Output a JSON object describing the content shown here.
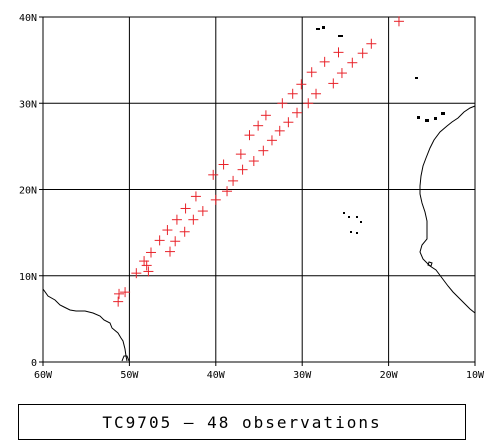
{
  "map": {
    "caption": "TC9705 — 48 observations",
    "lon_range": [
      -60,
      -10
    ],
    "lat_range": [
      0,
      40
    ],
    "lon_ticks": [
      {
        "value": -60,
        "label": "60W"
      },
      {
        "value": -50,
        "label": "50W"
      },
      {
        "value": -40,
        "label": "40W"
      },
      {
        "value": -30,
        "label": "30W"
      },
      {
        "value": -20,
        "label": "20W"
      },
      {
        "value": -10,
        "label": "10W"
      }
    ],
    "lat_ticks": [
      {
        "value": 0,
        "label": "0"
      },
      {
        "value": 10,
        "label": "10N"
      },
      {
        "value": 20,
        "label": "20N"
      },
      {
        "value": 30,
        "label": "30N"
      },
      {
        "value": 40,
        "label": "40N"
      }
    ],
    "grid_lon": [
      -50,
      -40,
      -30,
      -20
    ],
    "grid_lat": [
      10,
      20,
      30
    ],
    "marker_color": "#e8232a",
    "marker_symbol": "plus",
    "observations": [
      [
        -51.2,
        7.9
      ],
      [
        -50.5,
        8.1
      ],
      [
        -51.3,
        7.0
      ],
      [
        -49.2,
        10.3
      ],
      [
        -48.3,
        11.7
      ],
      [
        -48.0,
        11.2
      ],
      [
        -47.8,
        10.5
      ],
      [
        -47.5,
        12.7
      ],
      [
        -46.5,
        14.1
      ],
      [
        -45.3,
        12.8
      ],
      [
        -45.6,
        15.3
      ],
      [
        -44.7,
        14.0
      ],
      [
        -44.5,
        16.5
      ],
      [
        -43.6,
        15.1
      ],
      [
        -43.5,
        17.8
      ],
      [
        -42.6,
        16.5
      ],
      [
        -42.3,
        19.2
      ],
      [
        -41.5,
        17.5
      ],
      [
        -40.3,
        21.7
      ],
      [
        -40.0,
        18.8
      ],
      [
        -39.1,
        22.9
      ],
      [
        -38.7,
        19.8
      ],
      [
        -38.0,
        21.0
      ],
      [
        -37.1,
        24.1
      ],
      [
        -36.9,
        22.3
      ],
      [
        -36.1,
        26.3
      ],
      [
        -35.6,
        23.3
      ],
      [
        -35.1,
        27.4
      ],
      [
        -34.2,
        28.6
      ],
      [
        -34.5,
        24.5
      ],
      [
        -33.5,
        25.7
      ],
      [
        -32.6,
        26.8
      ],
      [
        -31.6,
        27.8
      ],
      [
        -32.3,
        30.0
      ],
      [
        -31.1,
        31.1
      ],
      [
        -30.6,
        28.9
      ],
      [
        -30.1,
        32.2
      ],
      [
        -29.3,
        30.0
      ],
      [
        -28.9,
        33.6
      ],
      [
        -28.4,
        31.1
      ],
      [
        -27.4,
        34.8
      ],
      [
        -26.4,
        32.3
      ],
      [
        -25.8,
        35.9
      ],
      [
        -25.4,
        33.5
      ],
      [
        -24.2,
        34.7
      ],
      [
        -23.0,
        35.8
      ],
      [
        -22.0,
        36.9
      ],
      [
        -18.8,
        39.5
      ]
    ]
  }
}
